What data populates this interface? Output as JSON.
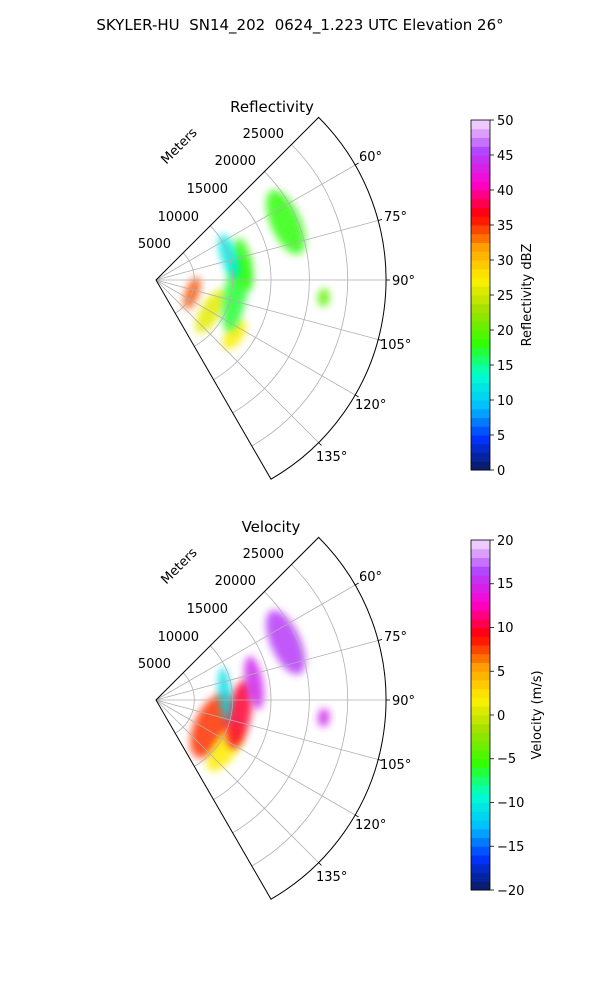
{
  "suptitle": "SKYLER-HU  SN14_202  0624_1.223 UTC Elevation 26°",
  "colors": {
    "sector_edge": "#000000",
    "grid": "#b0b0b0",
    "tick_text": "#000000"
  },
  "chart_data": [
    {
      "type": "heatmap",
      "projection": "polar-sector",
      "title": "Reflectivity",
      "radial_label": "Meters",
      "r_ticks": [
        "5000",
        "10000",
        "15000",
        "20000",
        "25000"
      ],
      "theta_ticks": [
        "60°",
        "75°",
        "90°",
        "105°",
        "120°",
        "135°"
      ],
      "theta_range_deg": [
        45,
        150
      ],
      "r_range_m": [
        0,
        30000
      ],
      "grid": true,
      "colorbar": {
        "label": "Reflectivity dBZ",
        "ticks": [
          "0",
          "5",
          "10",
          "15",
          "20",
          "25",
          "30",
          "35",
          "40",
          "45",
          "50"
        ],
        "vmin": 0,
        "vmax": 50,
        "cmap": [
          "#0a1a5c",
          "#0033ff",
          "#00bfff",
          "#00ffd0",
          "#33ff00",
          "#a0e000",
          "#fff000",
          "#ffa000",
          "#ff0000",
          "#ff00cc",
          "#b040ff",
          "#f8e0ff"
        ]
      },
      "echo_regions": [
        {
          "az": 110,
          "r": 5000,
          "sa": 10,
          "sr": 2200,
          "v": 34
        },
        {
          "az": 120,
          "r": 8200,
          "sa": 9,
          "sr": 3200,
          "v": 26
        },
        {
          "az": 125,
          "r": 12500,
          "sa": 5,
          "sr": 2200,
          "v": 27
        },
        {
          "az": 100,
          "r": 10500,
          "sa": 8,
          "sr": 5000,
          "v": 17
        },
        {
          "az": 80,
          "r": 11500,
          "sa": 6,
          "sr": 3500,
          "v": 18
        },
        {
          "az": 66,
          "r": 18500,
          "sa": 6,
          "sr": 4500,
          "v": 18
        },
        {
          "az": 72,
          "r": 10000,
          "sa": 6,
          "sr": 3000,
          "v": 12
        },
        {
          "az": 96,
          "r": 22000,
          "sa": 2,
          "sr": 1200,
          "v": 20
        }
      ]
    },
    {
      "type": "heatmap",
      "projection": "polar-sector",
      "title": "Velocity",
      "radial_label": "Meters",
      "r_ticks": [
        "5000",
        "10000",
        "15000",
        "20000",
        "25000"
      ],
      "theta_ticks": [
        "60°",
        "75°",
        "90°",
        "105°",
        "120°",
        "135°"
      ],
      "theta_range_deg": [
        45,
        150
      ],
      "r_range_m": [
        0,
        30000
      ],
      "grid": true,
      "colorbar": {
        "label": "Velocity (m/s)",
        "ticks": [
          "−20",
          "−15",
          "−10",
          "−5",
          "0",
          "5",
          "10",
          "15",
          "20"
        ],
        "vmin": -20,
        "vmax": 20,
        "cmap": [
          "#0a1a5c",
          "#0033ff",
          "#00bfff",
          "#00ffd0",
          "#33ff00",
          "#a0e000",
          "#fff000",
          "#ffa000",
          "#ff0000",
          "#ff00cc",
          "#b040ff",
          "#f8e0ff"
        ]
      },
      "echo_regions": [
        {
          "az": 115,
          "r": 8000,
          "sa": 16,
          "sr": 4500,
          "v": 8
        },
        {
          "az": 125,
          "r": 11000,
          "sa": 8,
          "sr": 3500,
          "v": 2
        },
        {
          "az": 100,
          "r": 11000,
          "sa": 8,
          "sr": 4500,
          "v": 10
        },
        {
          "az": 85,
          "r": 9000,
          "sa": 5,
          "sr": 3500,
          "v": -11
        },
        {
          "az": 80,
          "r": 13000,
          "sa": 5,
          "sr": 3500,
          "v": 15
        },
        {
          "az": 66,
          "r": 18500,
          "sa": 6,
          "sr": 4500,
          "v": 16
        },
        {
          "az": 96,
          "r": 22000,
          "sa": 2,
          "sr": 1200,
          "v": 15
        }
      ]
    }
  ]
}
